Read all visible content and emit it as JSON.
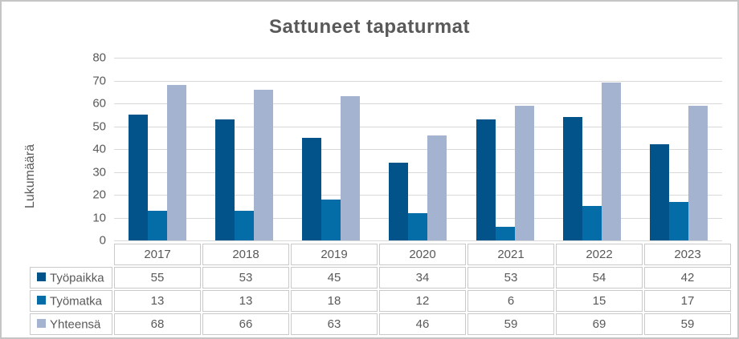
{
  "chart_data": {
    "type": "bar",
    "title": "Sattuneet tapaturmat",
    "ylabel": "Lukumäärä",
    "xlabel": "",
    "categories": [
      "2017",
      "2018",
      "2019",
      "2020",
      "2021",
      "2022",
      "2023"
    ],
    "series": [
      {
        "name": "Työpaikka",
        "color": "#03538B",
        "values": [
          55,
          53,
          45,
          34,
          53,
          54,
          42
        ]
      },
      {
        "name": "Työmatka",
        "color": "#046DA8",
        "values": [
          13,
          13,
          18,
          12,
          6,
          15,
          17
        ]
      },
      {
        "name": "Yhteensä",
        "color": "#A4B3CF",
        "values": [
          68,
          66,
          63,
          46,
          59,
          69,
          59
        ]
      }
    ],
    "ylim": [
      0,
      80
    ],
    "ytick_step": 10,
    "grid": true,
    "legend_position": "data-table-left"
  },
  "colors": {
    "text": "#595959",
    "gridline": "#D9D9D9",
    "table_border": "#C9C9C9",
    "outer_border": "#C5C5C5",
    "background": "#FFFFFF"
  }
}
